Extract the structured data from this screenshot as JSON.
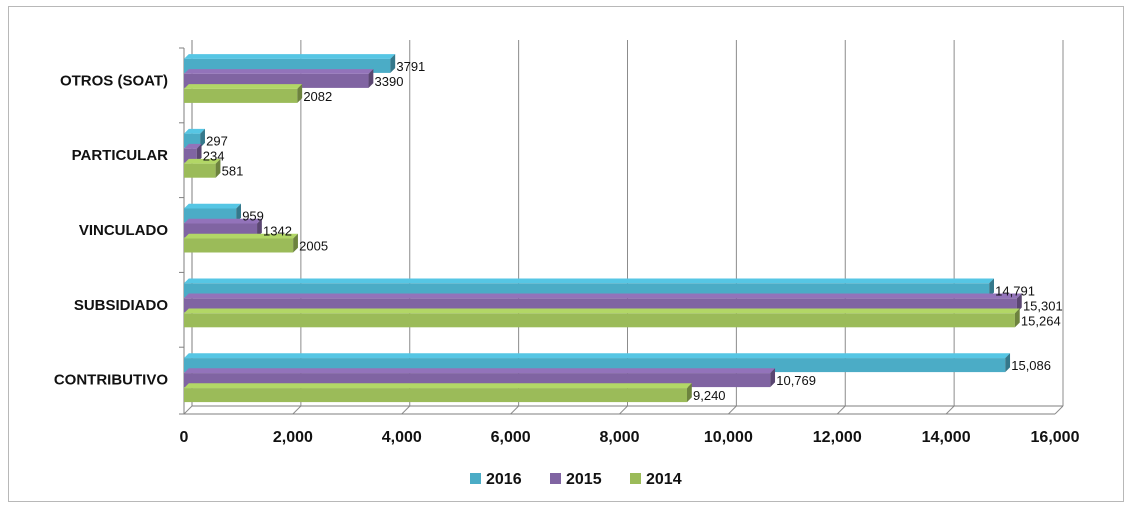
{
  "chart_data": {
    "type": "bar",
    "orientation": "horizontal",
    "title": "",
    "xlabel": "",
    "ylabel": "",
    "categories": [
      "OTROS (SOAT)",
      "PARTICULAR",
      "VINCULADO",
      "SUBSIDIADO",
      "CONTRIBUTIVO"
    ],
    "series": [
      {
        "name": "2016",
        "color": "#4bacc6",
        "values": [
          3791,
          297,
          959,
          14791,
          15086
        ],
        "labels": [
          "3791",
          "297",
          "959",
          "14,791",
          "15,086"
        ]
      },
      {
        "name": "2015",
        "color": "#8064a2",
        "values": [
          3390,
          234,
          1342,
          15301,
          10769
        ],
        "labels": [
          "3390",
          "234",
          "1342",
          "15,301",
          "10,769"
        ]
      },
      {
        "name": "2014",
        "color": "#9bbb59",
        "values": [
          2082,
          581,
          2005,
          15264,
          9240
        ],
        "labels": [
          "2082",
          "581",
          "2005",
          "15,264",
          "9,240"
        ]
      }
    ],
    "xlim": [
      0,
      16000
    ],
    "ticks": [
      0,
      2000,
      4000,
      6000,
      8000,
      10000,
      12000,
      14000,
      16000
    ],
    "tick_labels": [
      "0",
      "2,000",
      "4,000",
      "6,000",
      "8,000",
      "10,000",
      "12,000",
      "14,000",
      "16,000"
    ],
    "grid": true,
    "legend_position": "bottom-center"
  }
}
